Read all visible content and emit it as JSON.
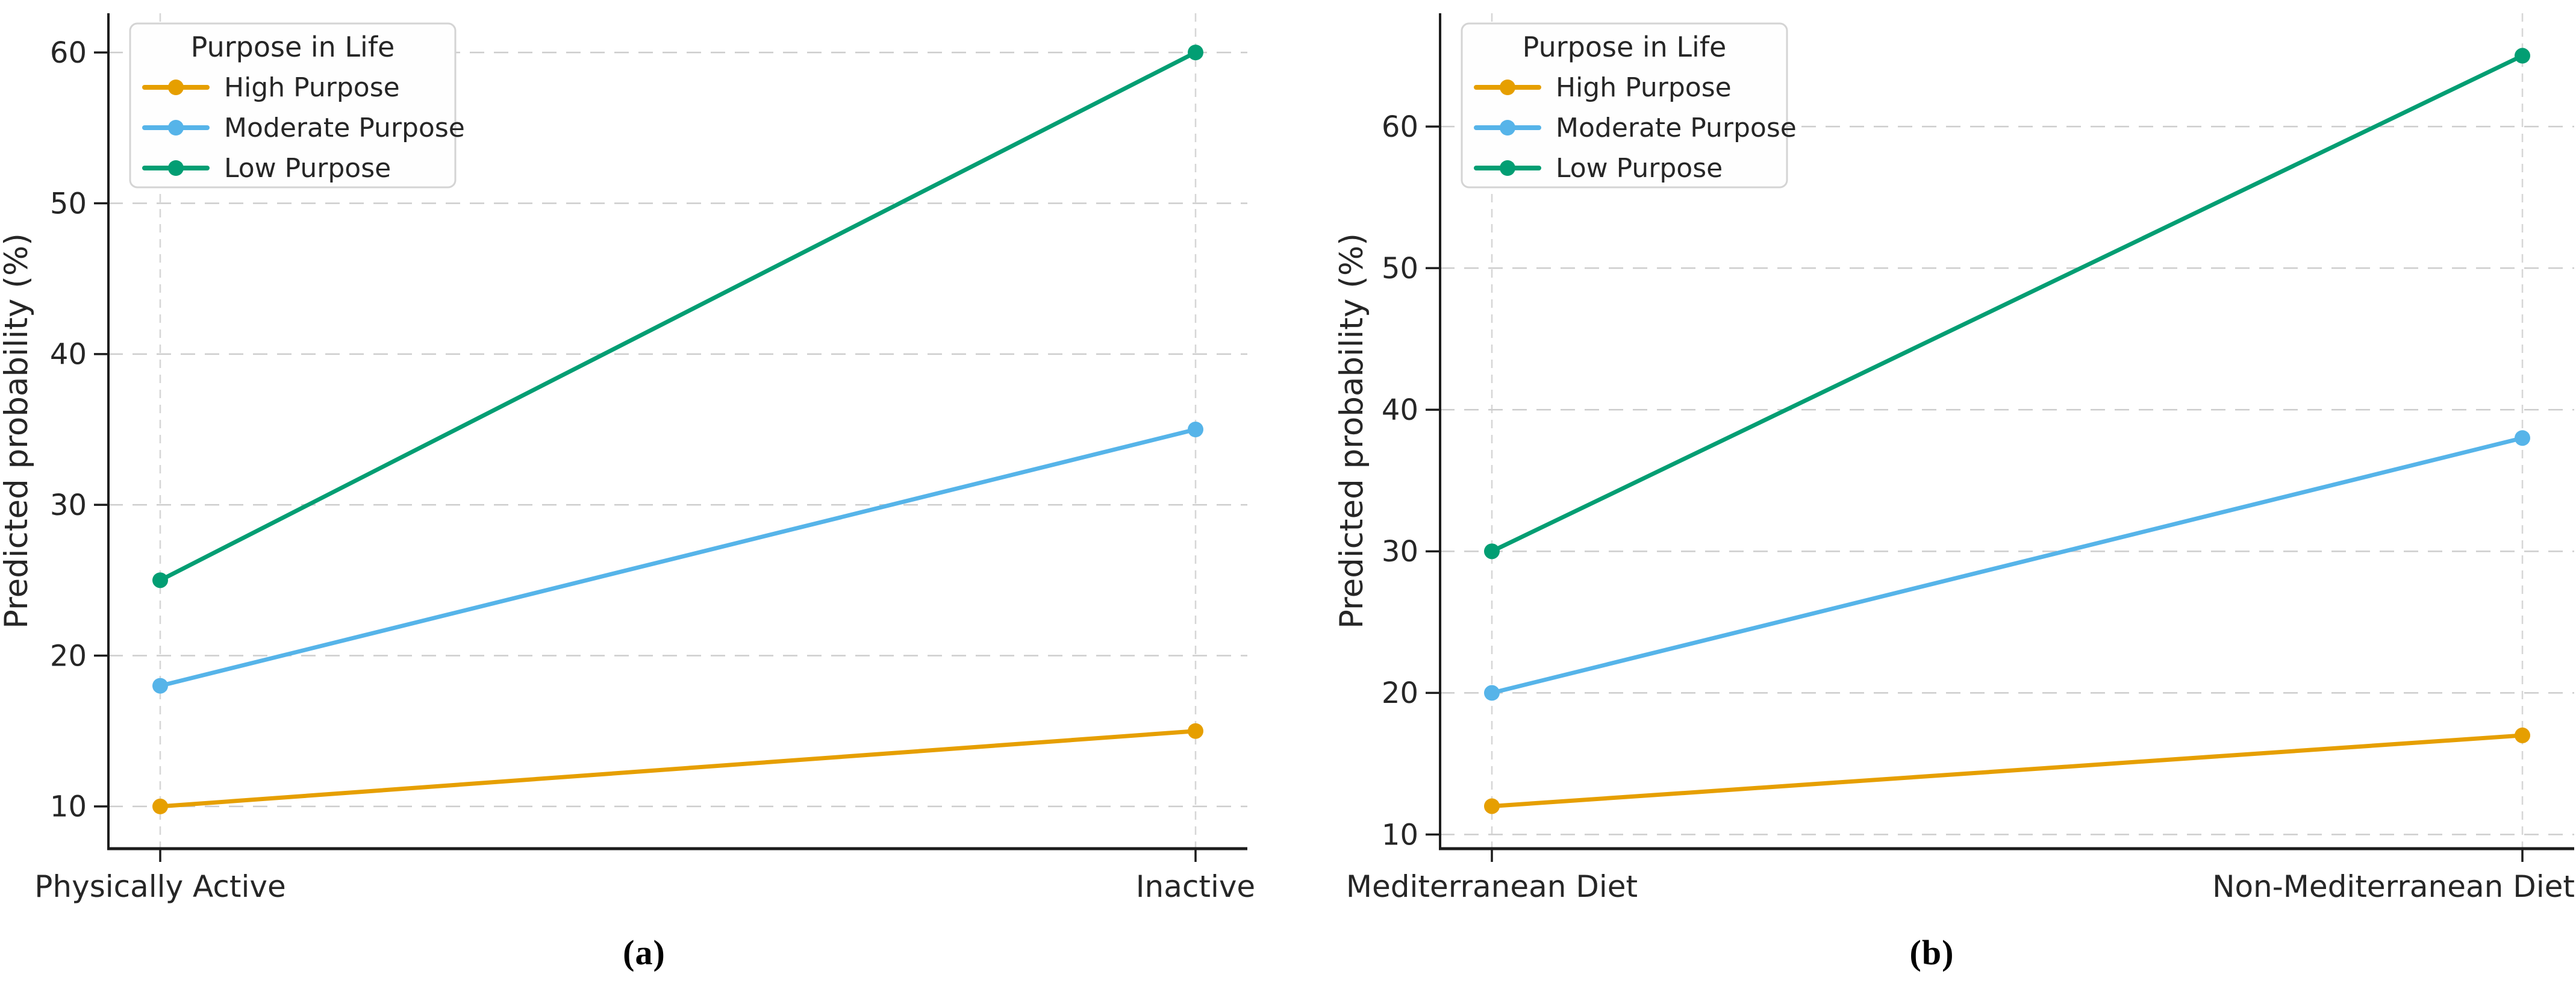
{
  "figure": {
    "background": "#ffffff",
    "text_color": "#262626",
    "grid_color": "#cdcdcd",
    "spine_color": "#1c1c1c"
  },
  "chart_data": [
    {
      "type": "line",
      "panel": "a",
      "caption": "(a)",
      "categories": [
        "Physically Active",
        "Inactive"
      ],
      "series": [
        {
          "name": "High Purpose",
          "color": "#E69F00",
          "values": [
            10,
            15
          ]
        },
        {
          "name": "Moderate Purpose",
          "color": "#56B4E9",
          "values": [
            18,
            35
          ]
        },
        {
          "name": "Low Purpose",
          "color": "#029E73",
          "values": [
            25,
            60
          ]
        }
      ],
      "ylabel": "Predicted probability (%)",
      "yticks": [
        10,
        20,
        30,
        40,
        50,
        60
      ],
      "ylim": [
        7.2,
        62.6
      ],
      "legend_title": "Purpose in Life",
      "legend_position": "upper left",
      "grid": true,
      "markers": "circle"
    },
    {
      "type": "line",
      "panel": "b",
      "caption": "(b)",
      "categories": [
        "Mediterranean Diet",
        "Non-Mediterranean Diet"
      ],
      "series": [
        {
          "name": "High Purpose",
          "color": "#E69F00",
          "values": [
            12,
            17
          ]
        },
        {
          "name": "Moderate Purpose",
          "color": "#56B4E9",
          "values": [
            20,
            38
          ]
        },
        {
          "name": "Low Purpose",
          "color": "#029E73",
          "values": [
            30,
            65
          ]
        }
      ],
      "ylabel": "Predicted probability (%)",
      "yticks": [
        10,
        20,
        30,
        40,
        50,
        60
      ],
      "ylim": [
        9.0,
        68.0
      ],
      "legend_title": "Purpose in Life",
      "legend_position": "upper left",
      "grid": true,
      "markers": "circle"
    }
  ]
}
